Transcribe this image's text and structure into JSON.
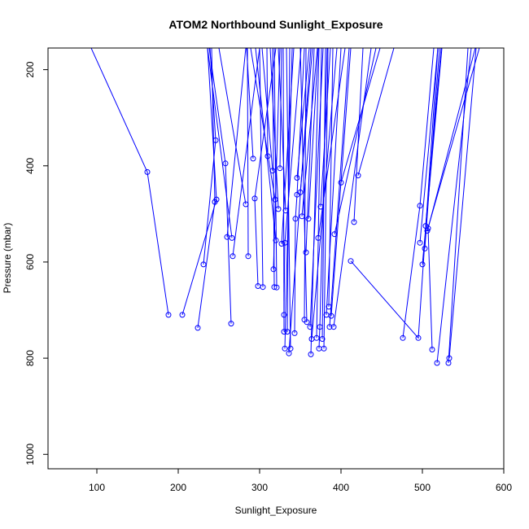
{
  "chart_data": {
    "type": "line",
    "title": "ATOM2 Northbound Sunlight_Exposure",
    "xlabel": "Sunlight_Exposure",
    "ylabel": "Pressure (mbar)",
    "xlim": [
      40,
      600
    ],
    "ylim": [
      1030,
      155
    ],
    "y_reversed": true,
    "grid": false,
    "x_ticks": [
      {
        "value": 100,
        "label": "100"
      },
      {
        "value": 200,
        "label": "200"
      },
      {
        "value": 300,
        "label": "300"
      },
      {
        "value": 400,
        "label": "400"
      },
      {
        "value": 500,
        "label": "500"
      },
      {
        "value": 600,
        "label": "600"
      }
    ],
    "y_ticks": [
      {
        "value": 200,
        "label": "200"
      },
      {
        "value": 400,
        "label": "400"
      },
      {
        "value": 600,
        "label": "600"
      },
      {
        "value": 800,
        "label": "800"
      },
      {
        "value": 1000,
        "label": "1000"
      }
    ],
    "line_color": "#0000ff",
    "marker": "open-circle",
    "profiles": [
      {
        "points": [
          [
            93,
            155
          ],
          [
            162,
            413
          ],
          [
            188,
            710
          ]
        ]
      },
      {
        "points": [
          [
            205,
            710
          ],
          [
            247,
            470
          ],
          [
            236,
            155
          ]
        ]
      },
      {
        "points": [
          [
            224,
            737
          ],
          [
            245,
            475
          ],
          [
            241,
            155
          ]
        ]
      },
      {
        "points": [
          [
            231,
            605
          ],
          [
            246,
            347
          ],
          [
            239,
            155
          ]
        ]
      },
      {
        "points": [
          [
            265,
            728
          ],
          [
            258,
            395
          ],
          [
            238,
            155
          ]
        ]
      },
      {
        "points": [
          [
            260,
            548
          ],
          [
            283,
            155
          ]
        ]
      },
      {
        "points": [
          [
            266,
            550
          ],
          [
            236,
            155
          ]
        ]
      },
      {
        "points": [
          [
            267,
            588
          ],
          [
            300,
            155
          ]
        ]
      },
      {
        "points": [
          [
            283,
            480
          ],
          [
            250,
            155
          ]
        ]
      },
      {
        "points": [
          [
            286,
            588
          ],
          [
            285,
            155
          ]
        ]
      },
      {
        "points": [
          [
            292,
            385
          ],
          [
            284,
            155
          ]
        ]
      },
      {
        "points": [
          [
            298,
            650
          ],
          [
            294,
            468
          ],
          [
            320,
            155
          ]
        ]
      },
      {
        "points": [
          [
            304,
            652
          ],
          [
            300,
            155
          ]
        ]
      },
      {
        "points": [
          [
            310,
            380
          ],
          [
            309,
            155
          ]
        ]
      },
      {
        "points": [
          [
            316,
            410
          ],
          [
            303,
            155
          ]
        ]
      },
      {
        "points": [
          [
            317,
            615
          ],
          [
            325,
            155
          ]
        ]
      },
      {
        "points": [
          [
            318,
            652
          ],
          [
            316,
            155
          ]
        ]
      },
      {
        "points": [
          [
            319,
            470
          ],
          [
            289,
            155
          ]
        ]
      },
      {
        "points": [
          [
            320,
            555
          ],
          [
            295,
            155
          ]
        ]
      },
      {
        "points": [
          [
            321,
            653
          ],
          [
            318,
            155
          ]
        ]
      },
      {
        "points": [
          [
            323,
            490
          ],
          [
            313,
            155
          ]
        ]
      },
      {
        "points": [
          [
            325,
            405
          ],
          [
            327,
            155
          ]
        ]
      },
      {
        "points": [
          [
            327,
            562
          ],
          [
            342,
            155
          ]
        ]
      },
      {
        "points": [
          [
            330,
            710
          ],
          [
            331,
            560
          ],
          [
            351,
            155
          ]
        ]
      },
      {
        "points": [
          [
            330,
            745
          ],
          [
            329,
            155
          ]
        ]
      },
      {
        "points": [
          [
            331,
            780
          ],
          [
            340,
            155
          ]
        ]
      },
      {
        "points": [
          [
            332,
            493
          ],
          [
            323,
            155
          ]
        ]
      },
      {
        "points": [
          [
            334,
            745
          ],
          [
            337,
            155
          ]
        ]
      },
      {
        "points": [
          [
            336,
            790
          ],
          [
            363,
            155
          ]
        ]
      },
      {
        "points": [
          [
            338,
            780
          ],
          [
            333,
            155
          ]
        ]
      },
      {
        "points": [
          [
            343,
            748
          ],
          [
            344,
            510
          ],
          [
            346,
            460
          ],
          [
            355,
            155
          ]
        ]
      },
      {
        "points": [
          [
            346,
            425
          ],
          [
            361,
            155
          ]
        ]
      },
      {
        "points": [
          [
            350,
            455
          ],
          [
            365,
            155
          ]
        ]
      },
      {
        "points": [
          [
            352,
            505
          ],
          [
            371,
            155
          ]
        ]
      },
      {
        "points": [
          [
            355,
            720
          ],
          [
            357,
            155
          ]
        ]
      },
      {
        "points": [
          [
            357,
            580
          ],
          [
            367,
            155
          ]
        ]
      },
      {
        "points": [
          [
            358,
            725
          ],
          [
            350,
            155
          ]
        ]
      },
      {
        "points": [
          [
            360,
            510
          ],
          [
            372,
            155
          ]
        ]
      },
      {
        "points": [
          [
            362,
            735
          ],
          [
            378,
            155
          ]
        ]
      },
      {
        "points": [
          [
            363,
            792
          ],
          [
            373,
            155
          ]
        ]
      },
      {
        "points": [
          [
            364,
            760
          ],
          [
            395,
            155
          ]
        ]
      },
      {
        "points": [
          [
            370,
            758
          ],
          [
            376,
            155
          ]
        ]
      },
      {
        "points": [
          [
            372,
            550
          ],
          [
            405,
            155
          ]
        ]
      },
      {
        "points": [
          [
            373,
            780
          ],
          [
            374,
            735
          ],
          [
            383,
            155
          ]
        ]
      },
      {
        "points": [
          [
            375,
            485
          ],
          [
            387,
            155
          ]
        ]
      },
      {
        "points": [
          [
            377,
            760
          ],
          [
            381,
            155
          ]
        ]
      },
      {
        "points": [
          [
            379,
            780
          ],
          [
            384,
            155
          ]
        ]
      },
      {
        "points": [
          [
            382,
            710
          ],
          [
            400,
            155
          ]
        ]
      },
      {
        "points": [
          [
            385,
            693
          ],
          [
            390,
            155
          ]
        ]
      },
      {
        "points": [
          [
            386,
            735
          ],
          [
            410,
            155
          ]
        ]
      },
      {
        "points": [
          [
            388,
            712
          ],
          [
            412,
            155
          ]
        ]
      },
      {
        "points": [
          [
            391,
            735
          ],
          [
            437,
            155
          ]
        ]
      },
      {
        "points": [
          [
            392,
            542
          ],
          [
            443,
            155
          ]
        ]
      },
      {
        "points": [
          [
            400,
            435
          ],
          [
            448,
            155
          ]
        ]
      },
      {
        "points": [
          [
            412,
            598
          ],
          [
            495,
            758
          ],
          [
            519,
            155
          ]
        ]
      },
      {
        "points": [
          [
            416,
            517
          ],
          [
            427,
            155
          ]
        ]
      },
      {
        "points": [
          [
            421,
            420
          ],
          [
            465,
            155
          ]
        ]
      },
      {
        "points": [
          [
            476,
            758
          ],
          [
            497,
            483
          ],
          [
            514,
            155
          ]
        ]
      },
      {
        "points": [
          [
            497,
            560
          ],
          [
            519,
            155
          ]
        ]
      },
      {
        "points": [
          [
            500,
            605
          ],
          [
            524,
            155
          ]
        ]
      },
      {
        "points": [
          [
            503,
            572
          ],
          [
            521,
            155
          ]
        ]
      },
      {
        "points": [
          [
            504,
            525
          ],
          [
            523,
            155
          ]
        ]
      },
      {
        "points": [
          [
            506,
            535
          ],
          [
            570,
            155
          ]
        ]
      },
      {
        "points": [
          [
            512,
            782
          ],
          [
            507,
            530
          ],
          [
            565,
            155
          ]
        ]
      },
      {
        "points": [
          [
            518,
            810
          ],
          [
            560,
            155
          ]
        ]
      },
      {
        "points": [
          [
            532,
            810
          ],
          [
            556,
            155
          ]
        ]
      },
      {
        "points": [
          [
            533,
            800
          ],
          [
            566,
            155
          ]
        ]
      }
    ]
  }
}
